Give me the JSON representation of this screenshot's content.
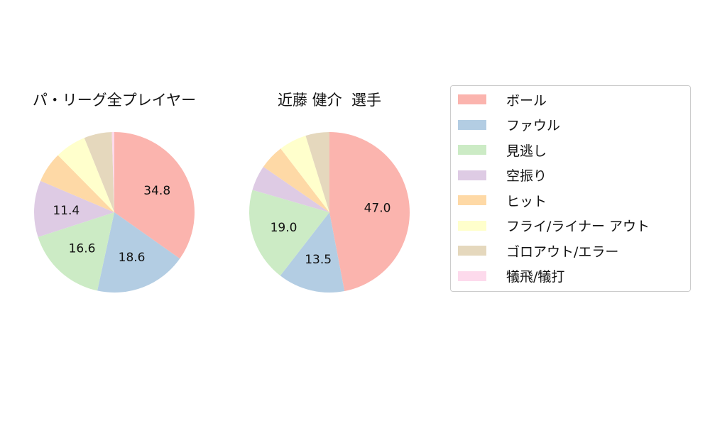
{
  "chart_data": [
    {
      "type": "pie",
      "title": "パ・リーグ全プレイヤー",
      "categories": [
        "ボール",
        "ファウル",
        "見逃し",
        "空振り",
        "ヒット",
        "フライ/ライナー アウト",
        "ゴロアウト/エラー",
        "犠飛/犠打"
      ],
      "values": [
        34.8,
        18.6,
        16.6,
        11.4,
        6.2,
        6.3,
        5.6,
        0.5
      ],
      "labels": [
        "34.8",
        "18.6",
        "16.6",
        "11.4",
        "",
        "",
        "",
        ""
      ]
    },
    {
      "type": "pie",
      "title": "近藤 健介  選手",
      "categories": [
        "ボール",
        "ファウル",
        "見逃し",
        "空振り",
        "ヒット",
        "フライ/ライナー アウト",
        "ゴロアウト/エラー",
        "犠飛/犠打"
      ],
      "values": [
        47.0,
        13.5,
        19.0,
        5.1,
        5.0,
        5.6,
        4.8,
        0
      ],
      "labels": [
        "47.0",
        "13.5",
        "19.0",
        "",
        "",
        "",
        "",
        ""
      ]
    }
  ],
  "colors": [
    "#fbb4ae",
    "#b3cde3",
    "#ccebc5",
    "#decbe4",
    "#fed9a6",
    "#ffffcc",
    "#e5d8bd",
    "#fddaec"
  ],
  "legend": {
    "placement": "right",
    "items": [
      "ボール",
      "ファウル",
      "見逃し",
      "空振り",
      "ヒット",
      "フライ/ライナー アウト",
      "ゴロアウト/エラー",
      "犠飛/犠打"
    ]
  }
}
